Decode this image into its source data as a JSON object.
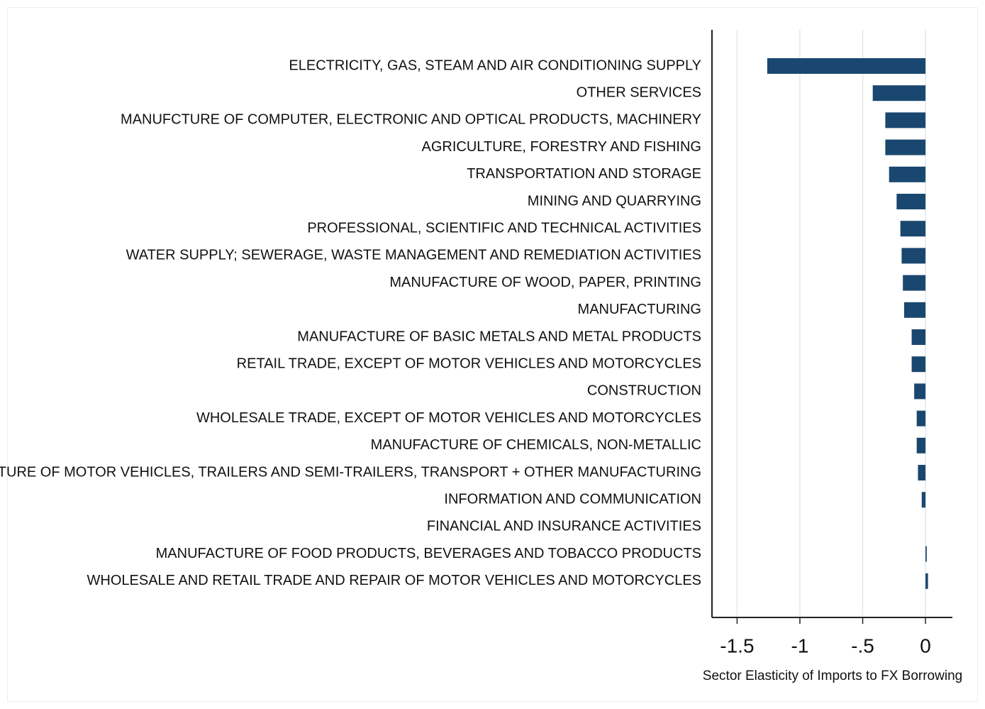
{
  "chart_data": {
    "type": "barh",
    "x_label": "Sector Elasticity of Imports to FX Borrowing",
    "categories": [
      "ELECTRICITY, GAS, STEAM AND AIR CONDITIONING SUPPLY",
      "OTHER SERVICES",
      "MANUFCTURE OF COMPUTER, ELECTRONIC AND OPTICAL PRODUCTS, MACHINERY",
      "AGRICULTURE, FORESTRY AND FISHING",
      "TRANSPORTATION AND STORAGE",
      "MINING AND QUARRYING",
      "PROFESSIONAL, SCIENTIFIC AND TECHNICAL ACTIVITIES",
      "WATER SUPPLY; SEWERAGE, WASTE MANAGEMENT AND REMEDIATION ACTIVITIES",
      "MANUFACTURE OF WOOD, PAPER, PRINTING",
      "MANUFACTURING",
      "MANUFACTURE OF BASIC METALS AND METAL PRODUCTS",
      "RETAIL TRADE, EXCEPT OF MOTOR VEHICLES AND MOTORCYCLES",
      "CONSTRUCTION",
      "WHOLESALE TRADE, EXCEPT OF MOTOR VEHICLES AND MOTORCYCLES",
      "MANUFACTURE OF CHEMICALS, NON-METALLIC",
      "MANUFACTURE OF MOTOR VEHICLES, TRAILERS AND SEMI-TRAILERS, TRANSPORT + OTHER MANUFACTURING",
      "INFORMATION AND COMMUNICATION",
      "FINANCIAL AND INSURANCE ACTIVITIES",
      "MANUFACTURE OF FOOD PRODUCTS, BEVERAGES AND TOBACCO PRODUCTS",
      "WHOLESALE AND RETAIL TRADE AND REPAIR OF MOTOR VEHICLES AND MOTORCYCLES"
    ],
    "values": [
      -1.26,
      -0.42,
      -0.32,
      -0.32,
      -0.29,
      -0.23,
      -0.2,
      -0.19,
      -0.18,
      -0.17,
      -0.11,
      -0.11,
      -0.09,
      -0.07,
      -0.07,
      -0.06,
      -0.03,
      0,
      0.01,
      0.02
    ],
    "color": "#1a476f",
    "xlim": [
      -1.7,
      0.2
    ],
    "xticks": [
      -1.5,
      -1,
      {
        "value": -0.5,
        "label": "-.5"
      },
      0
    ],
    "grid": true,
    "grid_color": "#dfeaec"
  }
}
